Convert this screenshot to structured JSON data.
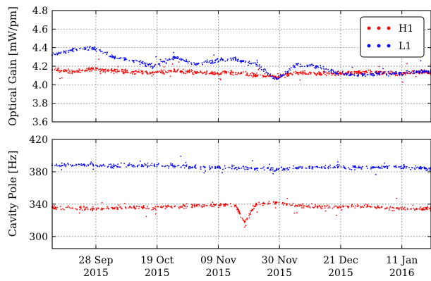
{
  "chart_data": [
    {
      "type": "scatter",
      "ylabel": "Optical Gain [mW/pm]",
      "ylim": [
        3.6,
        4.8
      ],
      "yticks": [
        "3.6",
        "3.8",
        "4.0",
        "4.2",
        "4.4",
        "4.6",
        "4.8"
      ],
      "xlim": [
        "2015-09-13",
        "2016-01-21"
      ],
      "xticks": [
        {
          "date": "2015-09-28",
          "day_label": "28 Sep",
          "year_label": "2015"
        },
        {
          "date": "2015-10-19",
          "day_label": "19 Oct",
          "year_label": "2015"
        },
        {
          "date": "2015-11-09",
          "day_label": "09 Nov",
          "year_label": "2015"
        },
        {
          "date": "2015-11-30",
          "day_label": "30 Nov",
          "year_label": "2015"
        },
        {
          "date": "2015-12-21",
          "day_label": "21 Dec",
          "year_label": "2015"
        },
        {
          "date": "2016-01-11",
          "day_label": "11 Jan",
          "year_label": "2016"
        }
      ],
      "grid": true,
      "legend_position": "top-right",
      "series": [
        {
          "name": "H1",
          "color": "#ff0000",
          "x": [
            "2015-09-13",
            "2015-09-20",
            "2015-09-27",
            "2015-10-04",
            "2015-10-11",
            "2015-10-18",
            "2015-10-25",
            "2015-11-01",
            "2015-11-08",
            "2015-11-15",
            "2015-11-22",
            "2015-11-29",
            "2015-12-06",
            "2015-12-13",
            "2015-12-20",
            "2015-12-27",
            "2016-01-03",
            "2016-01-10",
            "2016-01-17",
            "2016-01-21"
          ],
          "y": [
            4.16,
            4.14,
            4.17,
            4.15,
            4.14,
            4.13,
            4.15,
            4.14,
            4.12,
            4.13,
            4.1,
            4.08,
            4.13,
            4.12,
            4.12,
            4.14,
            4.13,
            4.12,
            4.14,
            4.13
          ]
        },
        {
          "name": "L1",
          "color": "#0000ff",
          "x": [
            "2015-09-13",
            "2015-09-20",
            "2015-09-27",
            "2015-10-04",
            "2015-10-11",
            "2015-10-18",
            "2015-10-25",
            "2015-11-01",
            "2015-11-08",
            "2015-11-15",
            "2015-11-22",
            "2015-11-29",
            "2015-12-06",
            "2015-12-13",
            "2015-12-20",
            "2015-12-27",
            "2016-01-03",
            "2016-01-10",
            "2016-01-17",
            "2016-01-21"
          ],
          "y": [
            4.32,
            4.38,
            4.4,
            4.3,
            4.26,
            4.2,
            4.3,
            4.22,
            4.26,
            4.28,
            4.22,
            4.06,
            4.22,
            4.2,
            4.12,
            4.1,
            4.12,
            4.12,
            4.14,
            4.14
          ]
        }
      ]
    },
    {
      "type": "scatter",
      "ylabel": "Cavity Pole [Hz]",
      "ylim": [
        285,
        420
      ],
      "yticks": [
        "300",
        "340",
        "380",
        "420"
      ],
      "xlim": [
        "2015-09-13",
        "2016-01-21"
      ],
      "xticks": [
        {
          "date": "2015-09-28",
          "day_label": "28 Sep",
          "year_label": "2015"
        },
        {
          "date": "2015-10-19",
          "day_label": "19 Oct",
          "year_label": "2015"
        },
        {
          "date": "2015-11-09",
          "day_label": "09 Nov",
          "year_label": "2015"
        },
        {
          "date": "2015-11-30",
          "day_label": "30 Nov",
          "year_label": "2015"
        },
        {
          "date": "2015-12-21",
          "day_label": "21 Dec",
          "year_label": "2015"
        },
        {
          "date": "2016-01-11",
          "day_label": "11 Jan",
          "year_label": "2016"
        }
      ],
      "grid": true,
      "series": [
        {
          "color": "#ff0000",
          "x": [
            "2015-09-13",
            "2015-09-20",
            "2015-09-27",
            "2015-10-04",
            "2015-10-11",
            "2015-10-18",
            "2015-10-25",
            "2015-11-01",
            "2015-11-08",
            "2015-11-15",
            "2015-11-18",
            "2015-11-22",
            "2015-11-29",
            "2015-12-06",
            "2015-12-13",
            "2015-12-20",
            "2015-12-27",
            "2016-01-03",
            "2016-01-10",
            "2016-01-17",
            "2016-01-21"
          ],
          "y": [
            336,
            335,
            334,
            335,
            336,
            335,
            337,
            338,
            339,
            338,
            318,
            340,
            342,
            338,
            337,
            336,
            338,
            336,
            335,
            334,
            335
          ]
        },
        {
          "color": "#0000ff",
          "x": [
            "2015-09-13",
            "2015-09-20",
            "2015-09-27",
            "2015-10-04",
            "2015-10-11",
            "2015-10-18",
            "2015-10-25",
            "2015-11-01",
            "2015-11-08",
            "2015-11-15",
            "2015-11-22",
            "2015-11-29",
            "2015-12-06",
            "2015-12-13",
            "2015-12-20",
            "2015-12-27",
            "2016-01-03",
            "2016-01-10",
            "2016-01-17",
            "2016-01-21"
          ],
          "y": [
            388,
            388,
            389,
            387,
            388,
            388,
            387,
            386,
            385,
            385,
            384,
            383,
            385,
            386,
            386,
            385,
            386,
            386,
            385,
            384
          ]
        }
      ]
    }
  ]
}
